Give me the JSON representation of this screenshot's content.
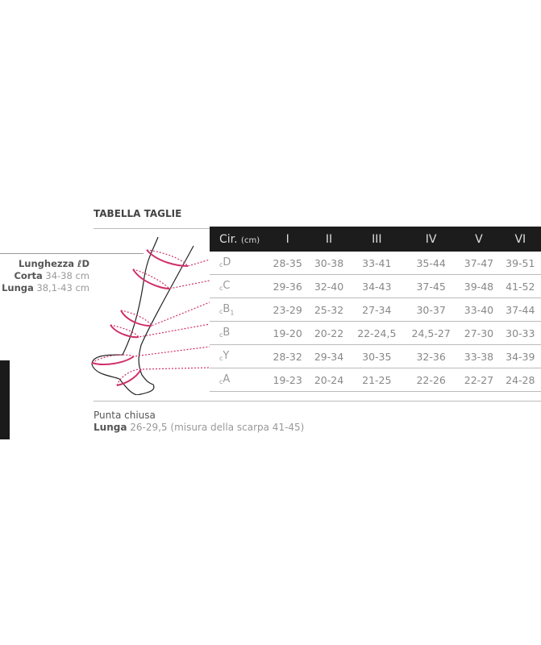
{
  "title": "TABELLA TAGLIE",
  "length": {
    "heading": "Lunghezza ℓD",
    "short_label": "Corta",
    "short_value": "34-38 cm",
    "long_label": "Lunga",
    "long_value": "38,1-43 cm"
  },
  "table": {
    "header_label": "Cir.",
    "header_unit": "(cm)",
    "columns": [
      "I",
      "II",
      "III",
      "IV",
      "V",
      "VI"
    ],
    "rows": [
      {
        "prefix": "c",
        "label": "D",
        "sub": "",
        "values": [
          "28-35",
          "30-38",
          "33-41",
          "35-44",
          "37-47",
          "39-51"
        ]
      },
      {
        "prefix": "c",
        "label": "C",
        "sub": "",
        "values": [
          "29-36",
          "32-40",
          "34-43",
          "37-45",
          "39-48",
          "41-52"
        ]
      },
      {
        "prefix": "c",
        "label": "B",
        "sub": "1",
        "values": [
          "23-29",
          "25-32",
          "27-34",
          "30-37",
          "33-40",
          "37-44"
        ]
      },
      {
        "prefix": "c",
        "label": "B",
        "sub": "",
        "values": [
          "19-20",
          "20-22",
          "22-24,5",
          "24,5-27",
          "27-30",
          "30-33"
        ]
      },
      {
        "prefix": "c",
        "label": "Y",
        "sub": "",
        "values": [
          "28-32",
          "29-34",
          "30-35",
          "32-36",
          "33-38",
          "34-39"
        ]
      },
      {
        "prefix": "c",
        "label": "A",
        "sub": "",
        "values": [
          "19-23",
          "20-24",
          "21-25",
          "22-26",
          "22-27",
          "24-28"
        ]
      }
    ]
  },
  "footer": {
    "toe": "Punta chiusa",
    "long_label": "Lunga",
    "long_value": "26-29,5 (misura della scarpa 41-45)"
  },
  "colors": {
    "accent": "#d0306a",
    "header_bg": "#1c1c1c"
  },
  "illustration": "leg-measurement-diagram"
}
